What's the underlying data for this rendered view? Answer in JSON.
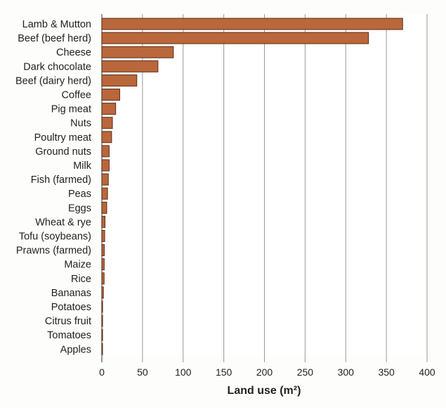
{
  "chart_data": {
    "type": "bar",
    "orientation": "horizontal",
    "title": "",
    "xlabel": "Land use (m²)",
    "ylabel": "",
    "xlim": [
      0,
      400
    ],
    "xticks": [
      0,
      50,
      100,
      150,
      200,
      250,
      300,
      350,
      400
    ],
    "grid": "vertical",
    "bar_color": "#b9673b",
    "categories": [
      "Lamb & Mutton",
      "Beef (beef herd)",
      "Cheese",
      "Dark chocolate",
      "Beef (dairy herd)",
      "Coffee",
      "Pig meat",
      "Nuts",
      "Poultry meat",
      "Ground nuts",
      "Milk",
      "Fish (farmed)",
      "Peas",
      "Eggs",
      "Wheat & rye",
      "Tofu (soybeans)",
      "Prawns (farmed)",
      "Maize",
      "Rice",
      "Bananas",
      "Potatoes",
      "Citrus fruit",
      "Tomatoes",
      "Apples"
    ],
    "values": [
      370,
      328,
      88,
      69,
      43,
      22,
      17,
      13,
      12,
      9,
      9,
      8,
      7,
      6,
      3.9,
      3.5,
      3,
      2.9,
      2.8,
      1.9,
      0.9,
      0.9,
      0.8,
      0.6
    ]
  }
}
